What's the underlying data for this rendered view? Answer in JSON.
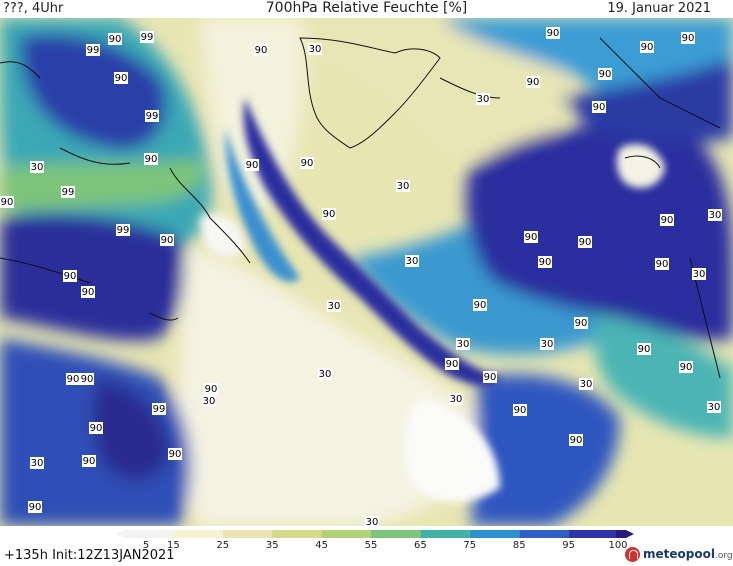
{
  "header": {
    "run_label": "???, 4Uhr",
    "title": "700hPa Relative Feuchte [%]",
    "date": "19. Januar 2021"
  },
  "footer": {
    "forecast_info": "+135h  Init:12Z13JAN2021",
    "brand_name": "meteopool",
    "brand_tld": ".org"
  },
  "legend": {
    "tick_labels": [
      "5",
      "15",
      "25",
      "35",
      "45",
      "55",
      "65",
      "75",
      "85",
      "95",
      "100"
    ],
    "colors": [
      "#f3f3f1",
      "#f6f3d5",
      "#e9e6b2",
      "#d7d98a",
      "#b2d27a",
      "#7dc57a",
      "#3fb4a6",
      "#2a92cf",
      "#2d5fc4",
      "#2f35a8",
      "#2a1a7e"
    ]
  },
  "map_labels": {
    "contour_values": [
      "30",
      "90",
      "99"
    ]
  }
}
